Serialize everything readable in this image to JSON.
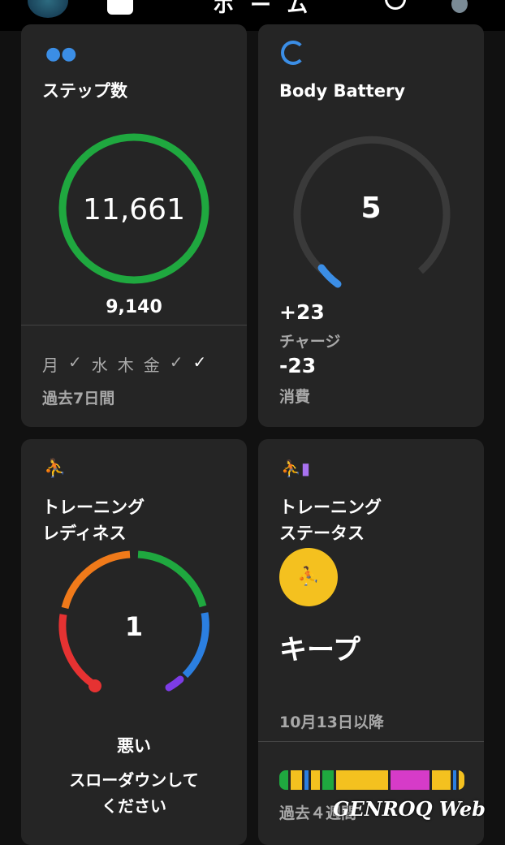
{
  "header": {
    "title": "ホーム"
  },
  "steps": {
    "title": "ステップ数",
    "value": "11,661",
    "goal": "9,140",
    "days": [
      "月",
      "✓",
      "水",
      "木",
      "金",
      "✓",
      "✓"
    ],
    "period": "過去7日間",
    "color": "#1fa83f"
  },
  "battery": {
    "title": "Body Battery",
    "value": "5",
    "level": 5,
    "charge_value": "+23",
    "charge_label": "チャージ",
    "drain_value": "-23",
    "drain_label": "消費",
    "color": "#3b8ee6"
  },
  "readiness": {
    "title_line1": "トレーニング",
    "title_line2": "レディネス",
    "value": "1",
    "level_label": "悪い",
    "message_line1": "スローダウンして",
    "message_line2": "ください"
  },
  "status": {
    "title_line1": "トレーニング",
    "title_line2": "ステータス",
    "value": "キープ",
    "since": "10月13日以降",
    "period": "過去４週間",
    "badge_color": "#f4c11f",
    "history": [
      {
        "c": "#1fa83f",
        "w": 5
      },
      {
        "c": "#f4c11f",
        "w": 6
      },
      {
        "c": "#2b7fe0",
        "w": 2
      },
      {
        "c": "#f4c11f",
        "w": 5
      },
      {
        "c": "#1fa83f",
        "w": 6
      },
      {
        "c": "#f4c11f",
        "w": 28
      },
      {
        "c": "#d63bc8",
        "w": 21
      },
      {
        "c": "#f4c11f",
        "w": 10
      },
      {
        "c": "#2b7fe0",
        "w": 2
      },
      {
        "c": "#f4c11f",
        "w": 3
      }
    ]
  },
  "watermark": "GENROQ Web"
}
